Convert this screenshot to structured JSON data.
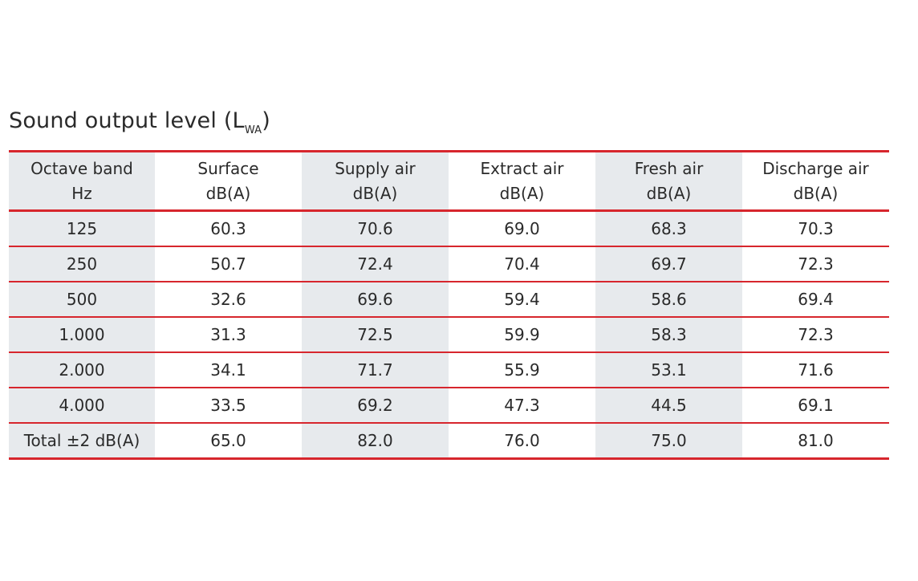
{
  "title": {
    "main": "Sound output level (L",
    "sub": "WA",
    "close": ")"
  },
  "colors": {
    "rule": "#d7262d",
    "shade": "#e7eaed",
    "text": "#2a2a2a"
  },
  "header": [
    {
      "line1": "Octave band",
      "line2": "Hz"
    },
    {
      "line1": "Surface",
      "line2": "dB(A)"
    },
    {
      "line1": "Supply air",
      "line2": "dB(A)"
    },
    {
      "line1": "Extract air",
      "line2": "dB(A)"
    },
    {
      "line1": "Fresh air",
      "line2": "dB(A)"
    },
    {
      "line1": "Discharge air",
      "line2": "dB(A)"
    }
  ],
  "rows": [
    [
      "125",
      "60.3",
      "70.6",
      "69.0",
      "68.3",
      "70.3"
    ],
    [
      "250",
      "50.7",
      "72.4",
      "70.4",
      "69.7",
      "72.3"
    ],
    [
      "500",
      "32.6",
      "69.6",
      "59.4",
      "58.6",
      "69.4"
    ],
    [
      "1.000",
      "31.3",
      "72.5",
      "59.9",
      "58.3",
      "72.3"
    ],
    [
      "2.000",
      "34.1",
      "71.7",
      "55.9",
      "53.1",
      "71.6"
    ],
    [
      "4.000",
      "33.5",
      "69.2",
      "47.3",
      "44.5",
      "69.1"
    ],
    [
      "Total ±2 dB(A)",
      "65.0",
      "82.0",
      "76.0",
      "75.0",
      "81.0"
    ]
  ]
}
